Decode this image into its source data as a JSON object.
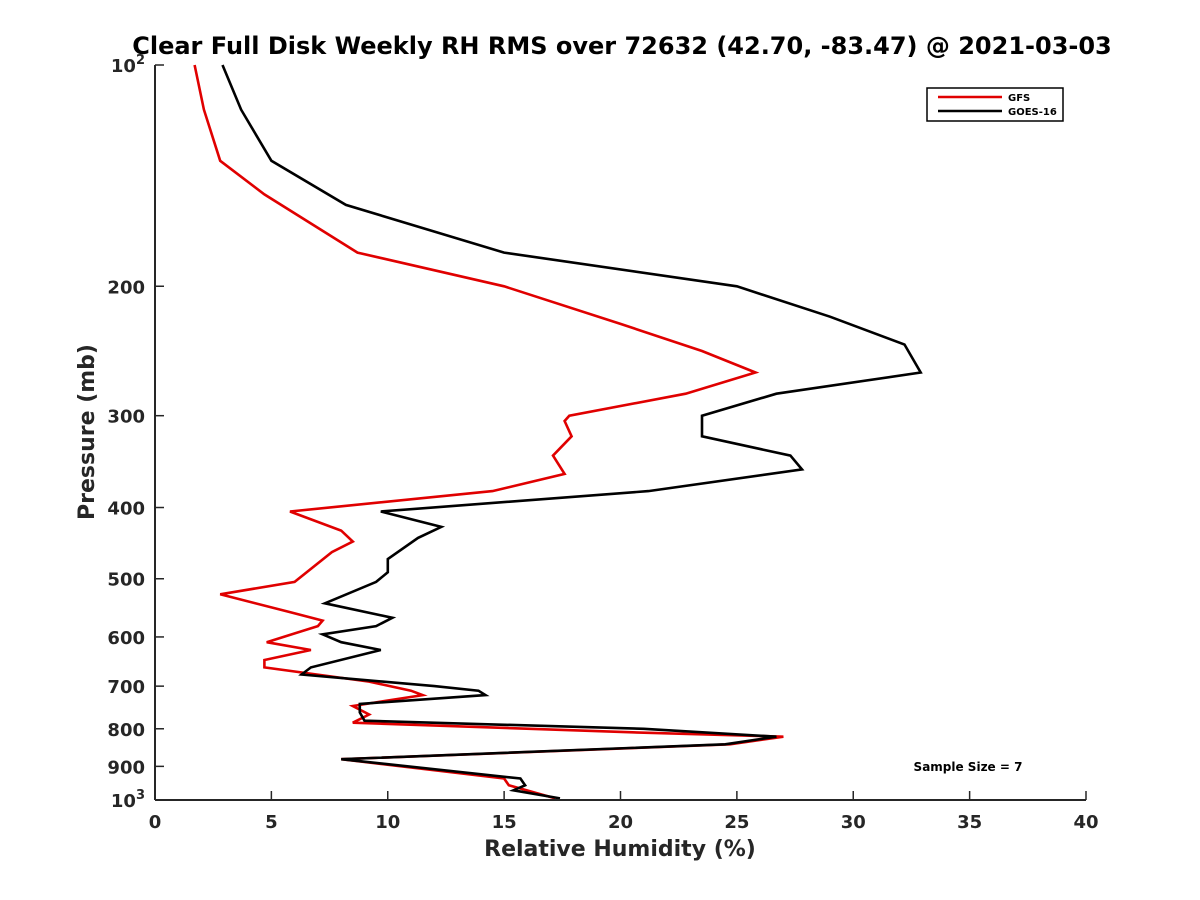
{
  "chart_data": {
    "type": "line",
    "title": "Clear Full Disk Weekly RH RMS over 72632 (42.70, -83.47) @ 2021-03-03",
    "xlabel": "Relative Humidity (%)",
    "ylabel": "Pressure (mb)",
    "xlim": [
      0,
      40
    ],
    "ylim": [
      100,
      1000
    ],
    "y_scale": "log",
    "y_reversed": true,
    "grid": false,
    "legend_position": "top-right",
    "x_ticks": [
      0,
      5,
      10,
      15,
      20,
      25,
      30,
      35,
      40
    ],
    "y_ticks": [
      {
        "value": 100,
        "base": "10",
        "exp": "2"
      },
      {
        "value": 200,
        "label": "200"
      },
      {
        "value": 300,
        "label": "300"
      },
      {
        "value": 400,
        "label": "400"
      },
      {
        "value": 500,
        "label": "500"
      },
      {
        "value": 600,
        "label": "600"
      },
      {
        "value": 700,
        "label": "700"
      },
      {
        "value": 800,
        "label": "800"
      },
      {
        "value": 900,
        "label": "900"
      },
      {
        "value": 1000,
        "base": "10",
        "exp": "3"
      }
    ],
    "annotation": "Sample Size = 7",
    "series": [
      {
        "name": "GFS",
        "color": "#e00000",
        "points": [
          [
            1.7,
            100
          ],
          [
            2.1,
            115
          ],
          [
            2.8,
            135
          ],
          [
            4.7,
            150
          ],
          [
            8.7,
            180
          ],
          [
            15.0,
            200
          ],
          [
            20.0,
            225
          ],
          [
            23.5,
            245
          ],
          [
            25.8,
            262
          ],
          [
            22.8,
            280
          ],
          [
            17.8,
            300
          ],
          [
            17.6,
            305
          ],
          [
            17.9,
            320
          ],
          [
            17.1,
            340
          ],
          [
            17.6,
            360
          ],
          [
            14.5,
            380
          ],
          [
            5.8,
            405
          ],
          [
            8.0,
            430
          ],
          [
            8.5,
            445
          ],
          [
            7.6,
            460
          ],
          [
            6.0,
            505
          ],
          [
            2.8,
            525
          ],
          [
            5.8,
            555
          ],
          [
            7.2,
            570
          ],
          [
            7.0,
            580
          ],
          [
            4.8,
            610
          ],
          [
            6.7,
            625
          ],
          [
            4.7,
            645
          ],
          [
            4.7,
            660
          ],
          [
            9.2,
            690
          ],
          [
            11.0,
            710
          ],
          [
            11.5,
            720
          ],
          [
            8.5,
            745
          ],
          [
            9.2,
            765
          ],
          [
            8.5,
            785
          ],
          [
            21.0,
            810
          ],
          [
            27.0,
            820
          ],
          [
            24.7,
            840
          ],
          [
            8.0,
            880
          ],
          [
            15.0,
            935
          ],
          [
            15.2,
            955
          ],
          [
            17.2,
            995
          ]
        ]
      },
      {
        "name": "GOES-16",
        "color": "#000000",
        "points": [
          [
            2.9,
            100
          ],
          [
            3.7,
            115
          ],
          [
            5.0,
            135
          ],
          [
            8.2,
            155
          ],
          [
            15.0,
            180
          ],
          [
            25.0,
            200
          ],
          [
            29.0,
            220
          ],
          [
            32.2,
            240
          ],
          [
            32.9,
            262
          ],
          [
            26.7,
            280
          ],
          [
            23.5,
            300
          ],
          [
            23.5,
            320
          ],
          [
            27.3,
            340
          ],
          [
            27.8,
            355
          ],
          [
            21.2,
            380
          ],
          [
            9.7,
            405
          ],
          [
            12.3,
            425
          ],
          [
            11.3,
            440
          ],
          [
            10.0,
            470
          ],
          [
            10.0,
            490
          ],
          [
            9.5,
            505
          ],
          [
            7.3,
            540
          ],
          [
            10.2,
            565
          ],
          [
            9.5,
            580
          ],
          [
            7.2,
            595
          ],
          [
            8.0,
            610
          ],
          [
            9.7,
            625
          ],
          [
            6.7,
            660
          ],
          [
            6.3,
            675
          ],
          [
            12.0,
            700
          ],
          [
            13.9,
            710
          ],
          [
            14.2,
            720
          ],
          [
            8.8,
            740
          ],
          [
            8.8,
            760
          ],
          [
            9.0,
            780
          ],
          [
            21.0,
            800
          ],
          [
            26.7,
            820
          ],
          [
            24.5,
            840
          ],
          [
            8.0,
            880
          ],
          [
            15.7,
            935
          ],
          [
            15.9,
            955
          ],
          [
            15.4,
            970
          ],
          [
            17.4,
            995
          ]
        ]
      }
    ]
  }
}
